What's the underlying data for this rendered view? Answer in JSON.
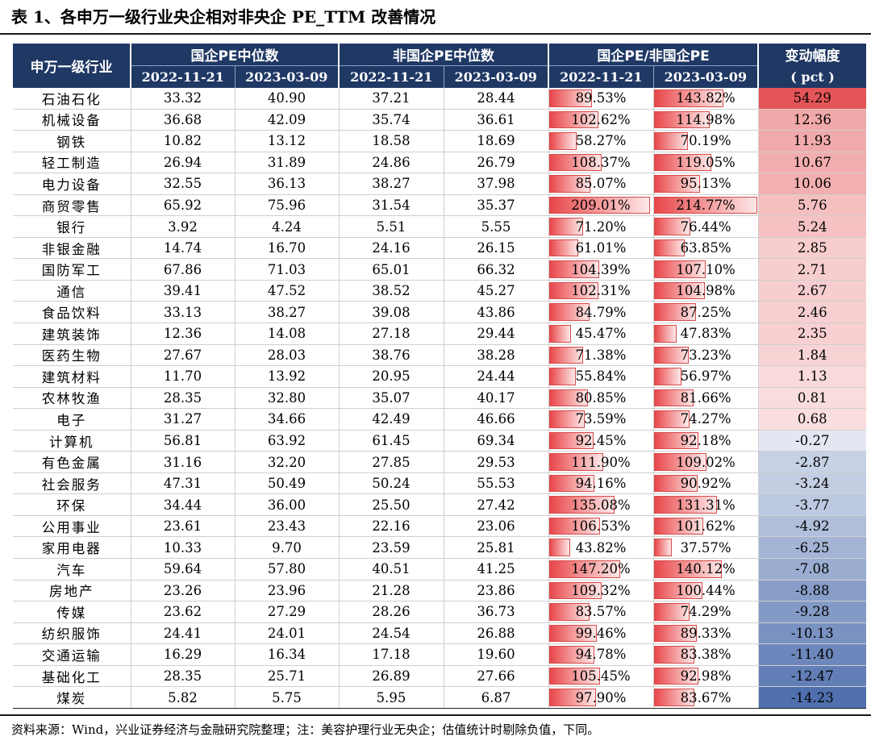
{
  "title": "表 1、各申万一级行业央企相对非央企 PE_TTM 改善情况",
  "header": {
    "industry": "申万一级行业",
    "group1": "国企PE中位数",
    "group2": "非国企PE中位数",
    "group3": "国企PE/非国企PE",
    "change_line1": "变动幅度",
    "change_line2": "( pct )",
    "d1": "2022-11-21",
    "d2": "2023-03-09"
  },
  "rows": [
    {
      "name": "石油石化",
      "s1": "33.32",
      "s2": "40.90",
      "n1": "37.21",
      "n2": "28.44",
      "r1": "89.53%",
      "r1v": 89.53,
      "r2": "143.82%",
      "r2v": 143.82,
      "chg": "54.29",
      "chgv": 54.29
    },
    {
      "name": "机械设备",
      "s1": "36.68",
      "s2": "42.09",
      "n1": "35.74",
      "n2": "36.61",
      "r1": "102.62%",
      "r1v": 102.62,
      "r2": "114.98%",
      "r2v": 114.98,
      "chg": "12.36",
      "chgv": 12.36
    },
    {
      "name": "钢铁",
      "s1": "10.82",
      "s2": "13.12",
      "n1": "18.58",
      "n2": "18.69",
      "r1": "58.27%",
      "r1v": 58.27,
      "r2": "70.19%",
      "r2v": 70.19,
      "chg": "11.93",
      "chgv": 11.93
    },
    {
      "name": "轻工制造",
      "s1": "26.94",
      "s2": "31.89",
      "n1": "24.86",
      "n2": "26.79",
      "r1": "108.37%",
      "r1v": 108.37,
      "r2": "119.05%",
      "r2v": 119.05,
      "chg": "10.67",
      "chgv": 10.67
    },
    {
      "name": "电力设备",
      "s1": "32.55",
      "s2": "36.13",
      "n1": "38.27",
      "n2": "37.98",
      "r1": "85.07%",
      "r1v": 85.07,
      "r2": "95.13%",
      "r2v": 95.13,
      "chg": "10.06",
      "chgv": 10.06
    },
    {
      "name": "商贸零售",
      "s1": "65.92",
      "s2": "75.96",
      "n1": "31.54",
      "n2": "35.37",
      "r1": "209.01%",
      "r1v": 209.01,
      "r2": "214.77%",
      "r2v": 214.77,
      "chg": "5.76",
      "chgv": 5.76
    },
    {
      "name": "银行",
      "s1": "3.92",
      "s2": "4.24",
      "n1": "5.51",
      "n2": "5.55",
      "r1": "71.20%",
      "r1v": 71.2,
      "r2": "76.44%",
      "r2v": 76.44,
      "chg": "5.24",
      "chgv": 5.24
    },
    {
      "name": "非银金融",
      "s1": "14.74",
      "s2": "16.70",
      "n1": "24.16",
      "n2": "26.15",
      "r1": "61.01%",
      "r1v": 61.01,
      "r2": "63.85%",
      "r2v": 63.85,
      "chg": "2.85",
      "chgv": 2.85
    },
    {
      "name": "国防军工",
      "s1": "67.86",
      "s2": "71.03",
      "n1": "65.01",
      "n2": "66.32",
      "r1": "104.39%",
      "r1v": 104.39,
      "r2": "107.10%",
      "r2v": 107.1,
      "chg": "2.71",
      "chgv": 2.71
    },
    {
      "name": "通信",
      "s1": "39.41",
      "s2": "47.52",
      "n1": "38.52",
      "n2": "45.27",
      "r1": "102.31%",
      "r1v": 102.31,
      "r2": "104.98%",
      "r2v": 104.98,
      "chg": "2.67",
      "chgv": 2.67
    },
    {
      "name": "食品饮料",
      "s1": "33.13",
      "s2": "38.27",
      "n1": "39.08",
      "n2": "43.86",
      "r1": "84.79%",
      "r1v": 84.79,
      "r2": "87.25%",
      "r2v": 87.25,
      "chg": "2.46",
      "chgv": 2.46
    },
    {
      "name": "建筑装饰",
      "s1": "12.36",
      "s2": "14.08",
      "n1": "27.18",
      "n2": "29.44",
      "r1": "45.47%",
      "r1v": 45.47,
      "r2": "47.83%",
      "r2v": 47.83,
      "chg": "2.35",
      "chgv": 2.35
    },
    {
      "name": "医药生物",
      "s1": "27.67",
      "s2": "28.03",
      "n1": "38.76",
      "n2": "38.28",
      "r1": "71.38%",
      "r1v": 71.38,
      "r2": "73.23%",
      "r2v": 73.23,
      "chg": "1.84",
      "chgv": 1.84
    },
    {
      "name": "建筑材料",
      "s1": "11.70",
      "s2": "13.92",
      "n1": "20.95",
      "n2": "24.44",
      "r1": "55.84%",
      "r1v": 55.84,
      "r2": "56.97%",
      "r2v": 56.97,
      "chg": "1.13",
      "chgv": 1.13
    },
    {
      "name": "农林牧渔",
      "s1": "28.35",
      "s2": "32.80",
      "n1": "35.07",
      "n2": "40.17",
      "r1": "80.85%",
      "r1v": 80.85,
      "r2": "81.66%",
      "r2v": 81.66,
      "chg": "0.81",
      "chgv": 0.81
    },
    {
      "name": "电子",
      "s1": "31.27",
      "s2": "34.66",
      "n1": "42.49",
      "n2": "46.66",
      "r1": "73.59%",
      "r1v": 73.59,
      "r2": "74.27%",
      "r2v": 74.27,
      "chg": "0.68",
      "chgv": 0.68
    },
    {
      "name": "计算机",
      "s1": "56.81",
      "s2": "63.92",
      "n1": "61.45",
      "n2": "69.34",
      "r1": "92.45%",
      "r1v": 92.45,
      "r2": "92.18%",
      "r2v": 92.18,
      "chg": "-0.27",
      "chgv": -0.27
    },
    {
      "name": "有色金属",
      "s1": "31.16",
      "s2": "32.20",
      "n1": "27.85",
      "n2": "29.53",
      "r1": "111.90%",
      "r1v": 111.9,
      "r2": "109.02%",
      "r2v": 109.02,
      "chg": "-2.87",
      "chgv": -2.87
    },
    {
      "name": "社会服务",
      "s1": "47.31",
      "s2": "50.49",
      "n1": "50.24",
      "n2": "55.53",
      "r1": "94.16%",
      "r1v": 94.16,
      "r2": "90.92%",
      "r2v": 90.92,
      "chg": "-3.24",
      "chgv": -3.24
    },
    {
      "name": "环保",
      "s1": "34.44",
      "s2": "36.00",
      "n1": "25.50",
      "n2": "27.42",
      "r1": "135.08%",
      "r1v": 135.08,
      "r2": "131.31%",
      "r2v": 131.31,
      "chg": "-3.77",
      "chgv": -3.77
    },
    {
      "name": "公用事业",
      "s1": "23.61",
      "s2": "23.43",
      "n1": "22.16",
      "n2": "23.06",
      "r1": "106.53%",
      "r1v": 106.53,
      "r2": "101.62%",
      "r2v": 101.62,
      "chg": "-4.92",
      "chgv": -4.92
    },
    {
      "name": "家用电器",
      "s1": "10.33",
      "s2": "9.70",
      "n1": "23.59",
      "n2": "25.81",
      "r1": "43.82%",
      "r1v": 43.82,
      "r2": "37.57%",
      "r2v": 37.57,
      "chg": "-6.25",
      "chgv": -6.25
    },
    {
      "name": "汽车",
      "s1": "59.64",
      "s2": "57.80",
      "n1": "40.51",
      "n2": "41.25",
      "r1": "147.20%",
      "r1v": 147.2,
      "r2": "140.12%",
      "r2v": 140.12,
      "chg": "-7.08",
      "chgv": -7.08
    },
    {
      "name": "房地产",
      "s1": "23.26",
      "s2": "23.96",
      "n1": "21.28",
      "n2": "23.86",
      "r1": "109.32%",
      "r1v": 109.32,
      "r2": "100.44%",
      "r2v": 100.44,
      "chg": "-8.88",
      "chgv": -8.88
    },
    {
      "name": "传媒",
      "s1": "23.62",
      "s2": "27.29",
      "n1": "28.26",
      "n2": "36.73",
      "r1": "83.57%",
      "r1v": 83.57,
      "r2": "74.29%",
      "r2v": 74.29,
      "chg": "-9.28",
      "chgv": -9.28
    },
    {
      "name": "纺织服饰",
      "s1": "24.41",
      "s2": "24.01",
      "n1": "24.54",
      "n2": "26.88",
      "r1": "99.46%",
      "r1v": 99.46,
      "r2": "89.33%",
      "r2v": 89.33,
      "chg": "-10.13",
      "chgv": -10.13
    },
    {
      "name": "交通运输",
      "s1": "16.29",
      "s2": "16.34",
      "n1": "17.18",
      "n2": "19.60",
      "r1": "94.78%",
      "r1v": 94.78,
      "r2": "83.38%",
      "r2v": 83.38,
      "chg": "-11.40",
      "chgv": -11.4
    },
    {
      "name": "基础化工",
      "s1": "28.35",
      "s2": "25.71",
      "n1": "26.89",
      "n2": "27.66",
      "r1": "105.45%",
      "r1v": 105.45,
      "r2": "92.98%",
      "r2v": 92.98,
      "chg": "-12.47",
      "chgv": -12.47
    },
    {
      "name": "煤炭",
      "s1": "5.82",
      "s2": "5.75",
      "n1": "5.95",
      "n2": "6.87",
      "r1": "97.90%",
      "r1v": 97.9,
      "r2": "83.67%",
      "r2v": 83.67,
      "chg": "-14.23",
      "chgv": -14.23
    }
  ],
  "note": "资料来源：Wind，兴业证券经济与金融研究院整理；注：美容护理行业无央企；估值统计时剔除负值，下同。",
  "colors": {
    "header_bg": "#1f3864",
    "bar_red": "#e8474a",
    "pos_max": "#e45557",
    "neg_max": "#4f6fae"
  }
}
